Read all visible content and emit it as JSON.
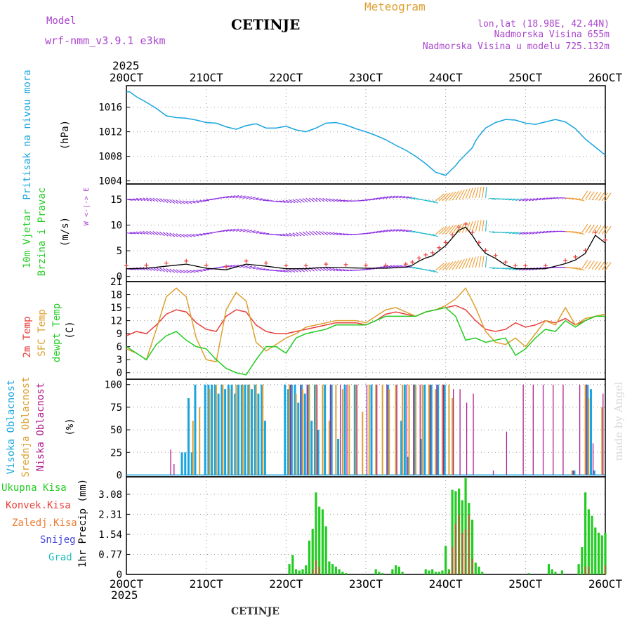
{
  "header": {
    "model_label": "Model",
    "model_name": "wrf-nmm_v3.9.1 e3km",
    "station": "CETINJE",
    "title": "Meteogram",
    "lonlat": "lon,lat (18.98E, 42.44N)",
    "altitude": "Nadmorska Visina 655m",
    "model_altitude": "Nadmorska Visina u modelu 725.132m",
    "footer_station": "CETINJE",
    "watermark": "made by Angel"
  },
  "colors": {
    "pressure": "#1aa4e0",
    "temp2m": "#e8413c",
    "sfctemp": "#dda030",
    "dewpt": "#22cc22",
    "high_cloud": "#1aa4e0",
    "mid_cloud": "#dda030",
    "low_cloud": "#b0208f",
    "total_precip": "#22cc22",
    "conv_precip": "#e8413c",
    "frz_precip": "#ee7b2e",
    "snow": "#4444dd",
    "hail": "#22bbbb",
    "model_text": "#aa44cc",
    "title_text": "#dda030",
    "wind_black": "#000000",
    "wind_red": "#e8413c"
  },
  "x_axis": {
    "year": "2025",
    "ticks": [
      "20OCT",
      "21OCT",
      "22OCT",
      "23OCT",
      "24OCT",
      "25OCT",
      "26OCT"
    ],
    "range_hours": [
      0,
      144
    ]
  },
  "chart_data": [
    {
      "type": "line",
      "panel": "pressure",
      "ylabel_1": "Pritisak na nivou mora",
      "ylabel_2": "(hPa)",
      "yticks": [
        "1016",
        "1012",
        "1008",
        "1004"
      ],
      "ytick_values": [
        1016,
        1012,
        1008,
        1004
      ],
      "ylim": [
        1003.5,
        1019.5
      ],
      "x": [
        0,
        1,
        3,
        6,
        9,
        12,
        15,
        18,
        21,
        24,
        27,
        30,
        33,
        36,
        39,
        42,
        45,
        48,
        51,
        54,
        57,
        60,
        63,
        66,
        69,
        72,
        75,
        78,
        81,
        84,
        87,
        90,
        93,
        96,
        99,
        100,
        102,
        104,
        105,
        106,
        108,
        111,
        114,
        117,
        120,
        123,
        126,
        129,
        132,
        135,
        138,
        141,
        144
      ],
      "values": [
        1018.5,
        1018.5,
        1017.7,
        1016.8,
        1015.8,
        1014.6,
        1014.3,
        1014.2,
        1013.9,
        1013.5,
        1013.4,
        1012.8,
        1012.4,
        1013.0,
        1013.3,
        1012.6,
        1012.6,
        1012.9,
        1012.3,
        1012.0,
        1012.6,
        1013.4,
        1013.5,
        1013.1,
        1012.5,
        1012.0,
        1011.4,
        1010.7,
        1009.8,
        1009.0,
        1008.0,
        1006.8,
        1005.4,
        1004.9,
        1006.5,
        1007.2,
        1008.3,
        1009.4,
        1010.5,
        1011.3,
        1012.6,
        1013.5,
        1014.0,
        1013.9,
        1013.4,
        1013.2,
        1013.6,
        1014.0,
        1013.6,
        1012.5,
        1010.8,
        1009.5,
        1008.2
      ]
    },
    {
      "type": "line",
      "panel": "wind",
      "ylabel_1": "10m Vjetar",
      "ylabel_2": "Brzina i Pravac",
      "ylabel_3": "(m/s)",
      "compass": "W <-|-> E",
      "yticks": [
        "15",
        "10",
        "5",
        "0"
      ],
      "ytick_values": [
        15,
        10,
        5,
        0
      ],
      "ylim": [
        -1,
        18
      ],
      "x": [
        0,
        6,
        12,
        18,
        24,
        30,
        36,
        42,
        48,
        54,
        60,
        66,
        72,
        78,
        84,
        86,
        88,
        90,
        92,
        94,
        96,
        98,
        100,
        102,
        104,
        106,
        108,
        111,
        114,
        117,
        120,
        126,
        132,
        135,
        138,
        141,
        144
      ],
      "values": [
        1.5,
        1.6,
        2.0,
        2.4,
        1.6,
        1.3,
        2.4,
        2.0,
        1.5,
        1.5,
        1.8,
        1.7,
        1.6,
        1.6,
        1.8,
        2.2,
        3.0,
        3.6,
        4.0,
        5.0,
        6.0,
        7.5,
        9.0,
        9.6,
        8.0,
        6.0,
        4.5,
        3.5,
        2.2,
        1.5,
        1.5,
        1.5,
        2.5,
        3.2,
        4.5,
        8.0,
        6.5
      ]
    },
    {
      "type": "line",
      "panel": "temperature",
      "ylabel_1": "2m Temp",
      "ylabel_2": "SFC Temp",
      "ylabel_3": "dewpt Temp",
      "ylabel_4": "(C)",
      "yticks": [
        "21",
        "18",
        "15",
        "12",
        "9",
        "6",
        "3",
        "0"
      ],
      "ytick_values": [
        21,
        18,
        15,
        12,
        9,
        6,
        3,
        0
      ],
      "ylim": [
        -1.5,
        21
      ],
      "x": [
        0,
        3,
        6,
        9,
        12,
        15,
        18,
        21,
        24,
        27,
        30,
        33,
        36,
        39,
        42,
        45,
        48,
        51,
        54,
        57,
        60,
        63,
        66,
        69,
        72,
        75,
        78,
        81,
        84,
        87,
        90,
        93,
        96,
        99,
        102,
        105,
        108,
        111,
        114,
        117,
        120,
        123,
        126,
        129,
        132,
        135,
        138,
        141,
        144
      ],
      "series": [
        {
          "name": "2m Temp",
          "values": [
            8.5,
            9.5,
            9.0,
            11.0,
            13.5,
            14.5,
            14.0,
            11.5,
            10.0,
            9.5,
            13.0,
            14.5,
            14.0,
            11.0,
            9.5,
            9.0,
            9.0,
            9.5,
            10.0,
            10.5,
            11.0,
            11.5,
            11.5,
            11.5,
            11.0,
            12.0,
            13.5,
            14.0,
            13.5,
            13.0,
            14.0,
            14.5,
            15.0,
            15.5,
            14.5,
            12.0,
            10.0,
            9.5,
            10.0,
            11.5,
            10.5,
            11.0,
            12.0,
            11.5,
            12.5,
            11.0,
            12.0,
            13.0,
            13.5
          ]
        },
        {
          "name": "SFC Temp",
          "values": [
            5.5,
            4.5,
            3.0,
            10.0,
            17.5,
            19.5,
            17.5,
            8.0,
            3.0,
            2.5,
            14.5,
            18.5,
            16.5,
            7.0,
            5.0,
            6.5,
            8.0,
            9.0,
            10.5,
            11.0,
            11.5,
            12.0,
            12.0,
            12.0,
            11.5,
            13.0,
            14.5,
            15.0,
            14.0,
            13.0,
            14.0,
            14.5,
            15.5,
            17.0,
            19.5,
            15.0,
            9.5,
            7.0,
            6.5,
            8.0,
            6.0,
            9.0,
            12.0,
            11.0,
            15.0,
            11.0,
            12.5,
            13.0,
            13.5
          ]
        },
        {
          "name": "dewpt Temp",
          "values": [
            6.0,
            4.5,
            3.0,
            6.5,
            8.5,
            9.5,
            7.5,
            6.0,
            5.5,
            3.0,
            1.0,
            0.0,
            -0.5,
            3.0,
            6.0,
            6.0,
            4.5,
            8.0,
            9.0,
            9.5,
            10.0,
            11.0,
            11.0,
            11.0,
            11.0,
            12.0,
            13.0,
            13.0,
            13.0,
            13.0,
            14.0,
            14.5,
            15.0,
            13.0,
            7.5,
            8.0,
            7.0,
            7.5,
            8.0,
            4.0,
            5.5,
            8.0,
            10.0,
            9.5,
            12.0,
            10.5,
            12.0,
            13.0,
            13.0
          ]
        }
      ]
    },
    {
      "type": "bar",
      "panel": "clouds",
      "ylabel_1": "Visoka Oblacnost",
      "ylabel_2": "Srednja Oblacnost",
      "ylabel_3": "Niska Oblacnost",
      "ylabel_4": "(%)",
      "yticks": [
        "100",
        "75",
        "50",
        "25",
        "0"
      ],
      "ytick_values": [
        100,
        75,
        50,
        25,
        0
      ],
      "ylim": [
        -2,
        106
      ],
      "series": [
        {
          "name": "Visoka Oblacnost",
          "x": [
            17,
            18,
            19,
            20,
            21,
            24,
            25,
            26,
            27,
            28,
            29,
            30,
            31,
            32,
            33,
            34,
            35,
            36,
            37,
            38,
            39,
            40,
            41,
            42,
            48,
            49,
            50,
            51,
            52,
            53,
            54,
            55,
            56,
            57,
            58,
            60,
            62,
            64,
            66,
            69,
            74,
            79,
            83,
            84,
            85,
            87,
            89,
            90,
            92,
            94,
            96,
            135,
            139,
            140,
            141
          ],
          "values": [
            25,
            25,
            85,
            25,
            100,
            100,
            100,
            100,
            100,
            90,
            100,
            95,
            100,
            100,
            90,
            100,
            100,
            100,
            100,
            95,
            100,
            90,
            100,
            60,
            100,
            95,
            100,
            100,
            80,
            100,
            90,
            100,
            60,
            100,
            50,
            100,
            100,
            40,
            100,
            100,
            100,
            100,
            60,
            100,
            20,
            100,
            40,
            100,
            100,
            100,
            100,
            5,
            100,
            95,
            5
          ]
        },
        {
          "name": "Srednja Oblacnost",
          "x": [
            20,
            22,
            25,
            27,
            29,
            31,
            33,
            35,
            37,
            39,
            41,
            49,
            51,
            53,
            55,
            57,
            59,
            61,
            63,
            65,
            67,
            69,
            71,
            73,
            75,
            77,
            79,
            81,
            83,
            85,
            87,
            89,
            91,
            93,
            95,
            97,
            98,
            134,
            138,
            139,
            143
          ],
          "values": [
            60,
            75,
            95,
            100,
            100,
            95,
            100,
            100,
            100,
            100,
            100,
            100,
            90,
            95,
            100,
            100,
            100,
            60,
            100,
            95,
            100,
            100,
            70,
            100,
            100,
            100,
            95,
            100,
            100,
            100,
            100,
            100,
            100,
            95,
            100,
            100,
            85,
            5,
            100,
            85,
            75
          ]
        },
        {
          "name": "Niska Oblacnost",
          "x": [
            13,
            14,
            49,
            52,
            54,
            57,
            61,
            64,
            66,
            69,
            72,
            75,
            78,
            81,
            84,
            86,
            88,
            91,
            93,
            95,
            98,
            100,
            102,
            104,
            110,
            114,
            119,
            122,
            125,
            128,
            131,
            134,
            136,
            138,
            140,
            143
          ],
          "values": [
            28,
            12,
            100,
            100,
            100,
            100,
            100,
            100,
            100,
            100,
            100,
            100,
            100,
            100,
            100,
            100,
            100,
            100,
            100,
            100,
            95,
            95,
            80,
            90,
            5,
            48,
            100,
            100,
            100,
            100,
            100,
            5,
            100,
            100,
            35,
            90
          ]
        }
      ]
    },
    {
      "type": "bar",
      "panel": "precipitation",
      "ylabel_1": "Ukupna Kisa",
      "ylabel_2": "Konvek.Kisa",
      "ylabel_3": "Zaledj.Kisa",
      "ylabel_4": "Snijeg",
      "ylabel_5": "Grad",
      "ylabel_6": "1hr Precip (mm)",
      "yticks": [
        "3.08",
        "2.31",
        "1.54",
        "0.77",
        "0"
      ],
      "ytick_values": [
        3.08,
        2.31,
        1.54,
        0.77,
        0
      ],
      "ylim": [
        0,
        3.75
      ],
      "series": [
        {
          "name": "Ukupna Kisa",
          "x": [
            49,
            50,
            51,
            52,
            53,
            54,
            55,
            56,
            57,
            58,
            59,
            60,
            61,
            62,
            63,
            64,
            65,
            66,
            75,
            76,
            77,
            80,
            81,
            82,
            83,
            90,
            91,
            92,
            93,
            94,
            95,
            96,
            97,
            98,
            99,
            100,
            101,
            102,
            103,
            104,
            105,
            106,
            107,
            121,
            127,
            128,
            129,
            131,
            136,
            137,
            138,
            139,
            140,
            141,
            142,
            143,
            144
          ],
          "values": [
            0.4,
            0.75,
            0.2,
            0.15,
            0.2,
            0.35,
            1.3,
            1.75,
            3.15,
            2.6,
            2.5,
            1.85,
            0.5,
            0.4,
            0.3,
            0.2,
            0.1,
            0.05,
            0.2,
            0.1,
            0.05,
            0.2,
            0.35,
            0.3,
            0.1,
            0.2,
            0.15,
            0.2,
            0.1,
            0.1,
            0.15,
            1.1,
            0.2,
            3.25,
            3.2,
            3.3,
            2.85,
            3.7,
            2.75,
            2.1,
            0.45,
            0.3,
            0.1,
            0.05,
            0.4,
            0.2,
            0.1,
            0.15,
            0.4,
            1.05,
            3.15,
            2.5,
            2.25,
            1.8,
            1.6,
            1.5,
            1.6
          ]
        },
        {
          "name": "Konvek.Kisa",
          "x": [
            56,
            57,
            58,
            97,
            98,
            99,
            100,
            101,
            102,
            103,
            104,
            138,
            139,
            144
          ],
          "values": [
            0.2,
            0.55,
            0.3,
            0.1,
            1.05,
            1.95,
            2.3,
            1.6,
            1.75,
            2.3,
            0.6,
            0.3,
            0.3,
            0.35
          ]
        }
      ]
    }
  ]
}
